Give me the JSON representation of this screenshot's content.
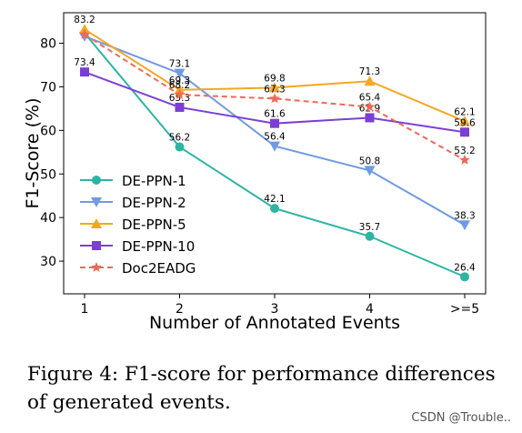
{
  "chart_data": {
    "type": "line",
    "xlabel": "Number of Annotated Events",
    "ylabel": "F1-Score (%)",
    "categories": [
      "1",
      "2",
      "3",
      "4",
      ">=5"
    ],
    "ylim": [
      22.5,
      87
    ],
    "yticks": [
      30,
      40,
      50,
      60,
      70,
      80
    ],
    "grid": false,
    "legend_position": "lower-left",
    "series": [
      {
        "name": "DE-PPN-1",
        "values": [
          82.3,
          56.2,
          42.1,
          35.7,
          26.4
        ],
        "labels": [
          "",
          "56.2",
          "42.1",
          "35.7",
          "26.4"
        ],
        "color": "#2cb5a3",
        "marker": "circle",
        "dashed": false
      },
      {
        "name": "DE-PPN-2",
        "values": [
          81.6,
          73.1,
          56.4,
          50.8,
          38.3
        ],
        "labels": [
          "",
          "73.1",
          "56.4",
          "50.8",
          "38.3"
        ],
        "color": "#6f9be3",
        "marker": "triangle-down",
        "dashed": false
      },
      {
        "name": "DE-PPN-5",
        "values": [
          83.2,
          69.3,
          69.8,
          71.3,
          62.1
        ],
        "labels": [
          "83.2",
          "69.3",
          "69.8",
          "71.3",
          "62.1"
        ],
        "color": "#f5a623",
        "marker": "triangle-up",
        "dashed": false
      },
      {
        "name": "DE-PPN-10",
        "values": [
          73.4,
          65.3,
          61.6,
          62.9,
          59.6
        ],
        "labels": [
          "73.4",
          "65.3",
          "61.6",
          "62.9",
          "59.6"
        ],
        "color": "#7b3fd6",
        "marker": "square",
        "dashed": false
      },
      {
        "name": "Doc2EADG",
        "values": [
          82.0,
          68.2,
          67.3,
          65.4,
          53.2
        ],
        "labels": [
          "",
          "68.2",
          "67.3",
          "65.4",
          "53.2"
        ],
        "color": "#f0685a",
        "marker": "star",
        "dashed": true
      }
    ]
  },
  "caption": "Figure 4: F1-score for performance differences of generated events.",
  "watermark": "CSDN @Trouble.."
}
